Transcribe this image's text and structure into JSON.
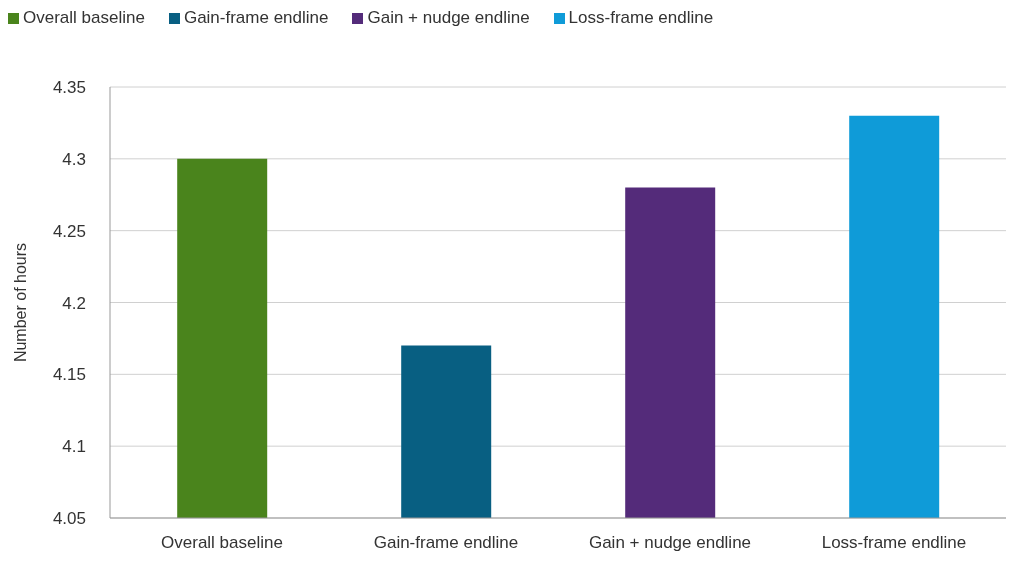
{
  "chart_data": {
    "type": "bar",
    "ylabel": "Number of hours",
    "categories": [
      "Overall baseline",
      "Gain-frame endline",
      "Gain + nudge endline",
      "Loss-frame endline"
    ],
    "series": [
      {
        "name": "Overall baseline",
        "color": "#4a841c",
        "values": [
          4.3,
          null,
          null,
          null
        ]
      },
      {
        "name": "Gain-frame endline",
        "color": "#085f82",
        "values": [
          null,
          4.17,
          null,
          null
        ]
      },
      {
        "name": "Gain + nudge endline",
        "color": "#542b7a",
        "values": [
          null,
          null,
          4.28,
          null
        ]
      },
      {
        "name": "Loss-frame endline",
        "color": "#0f9bd8",
        "values": [
          null,
          null,
          null,
          4.33
        ]
      }
    ],
    "ylim": [
      4.05,
      4.35
    ],
    "yticks": [
      4.05,
      4.1,
      4.15,
      4.2,
      4.25,
      4.3,
      4.35
    ],
    "grid": "y",
    "legend": "top left"
  }
}
